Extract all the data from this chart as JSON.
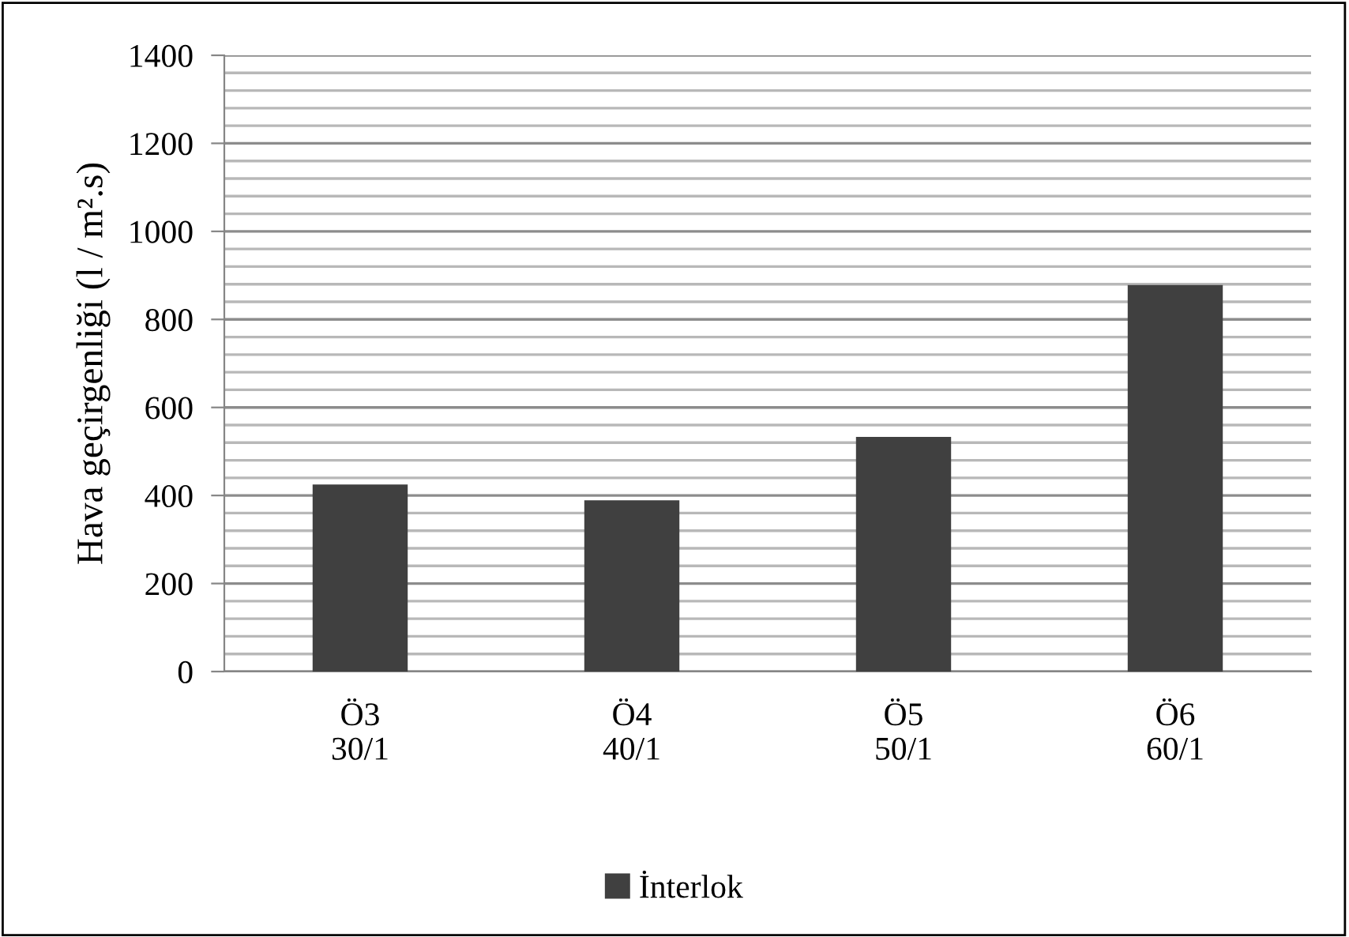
{
  "chart_data": {
    "type": "bar",
    "ylabel": "Hava geçirgenliği (l / m².s)",
    "categories": [
      "Ö3\n30/1",
      "Ö4\n40/1",
      "Ö5\n50/1",
      "Ö6\n60/1"
    ],
    "series": [
      {
        "name": "İnterlok",
        "color": "#404040",
        "values": [
          425,
          389,
          533,
          878
        ]
      }
    ],
    "ylim": [
      0,
      1400
    ],
    "yticks": [
      0,
      200,
      400,
      600,
      800,
      1000,
      1200,
      1400
    ],
    "grid": "y",
    "legend": "bottom"
  }
}
